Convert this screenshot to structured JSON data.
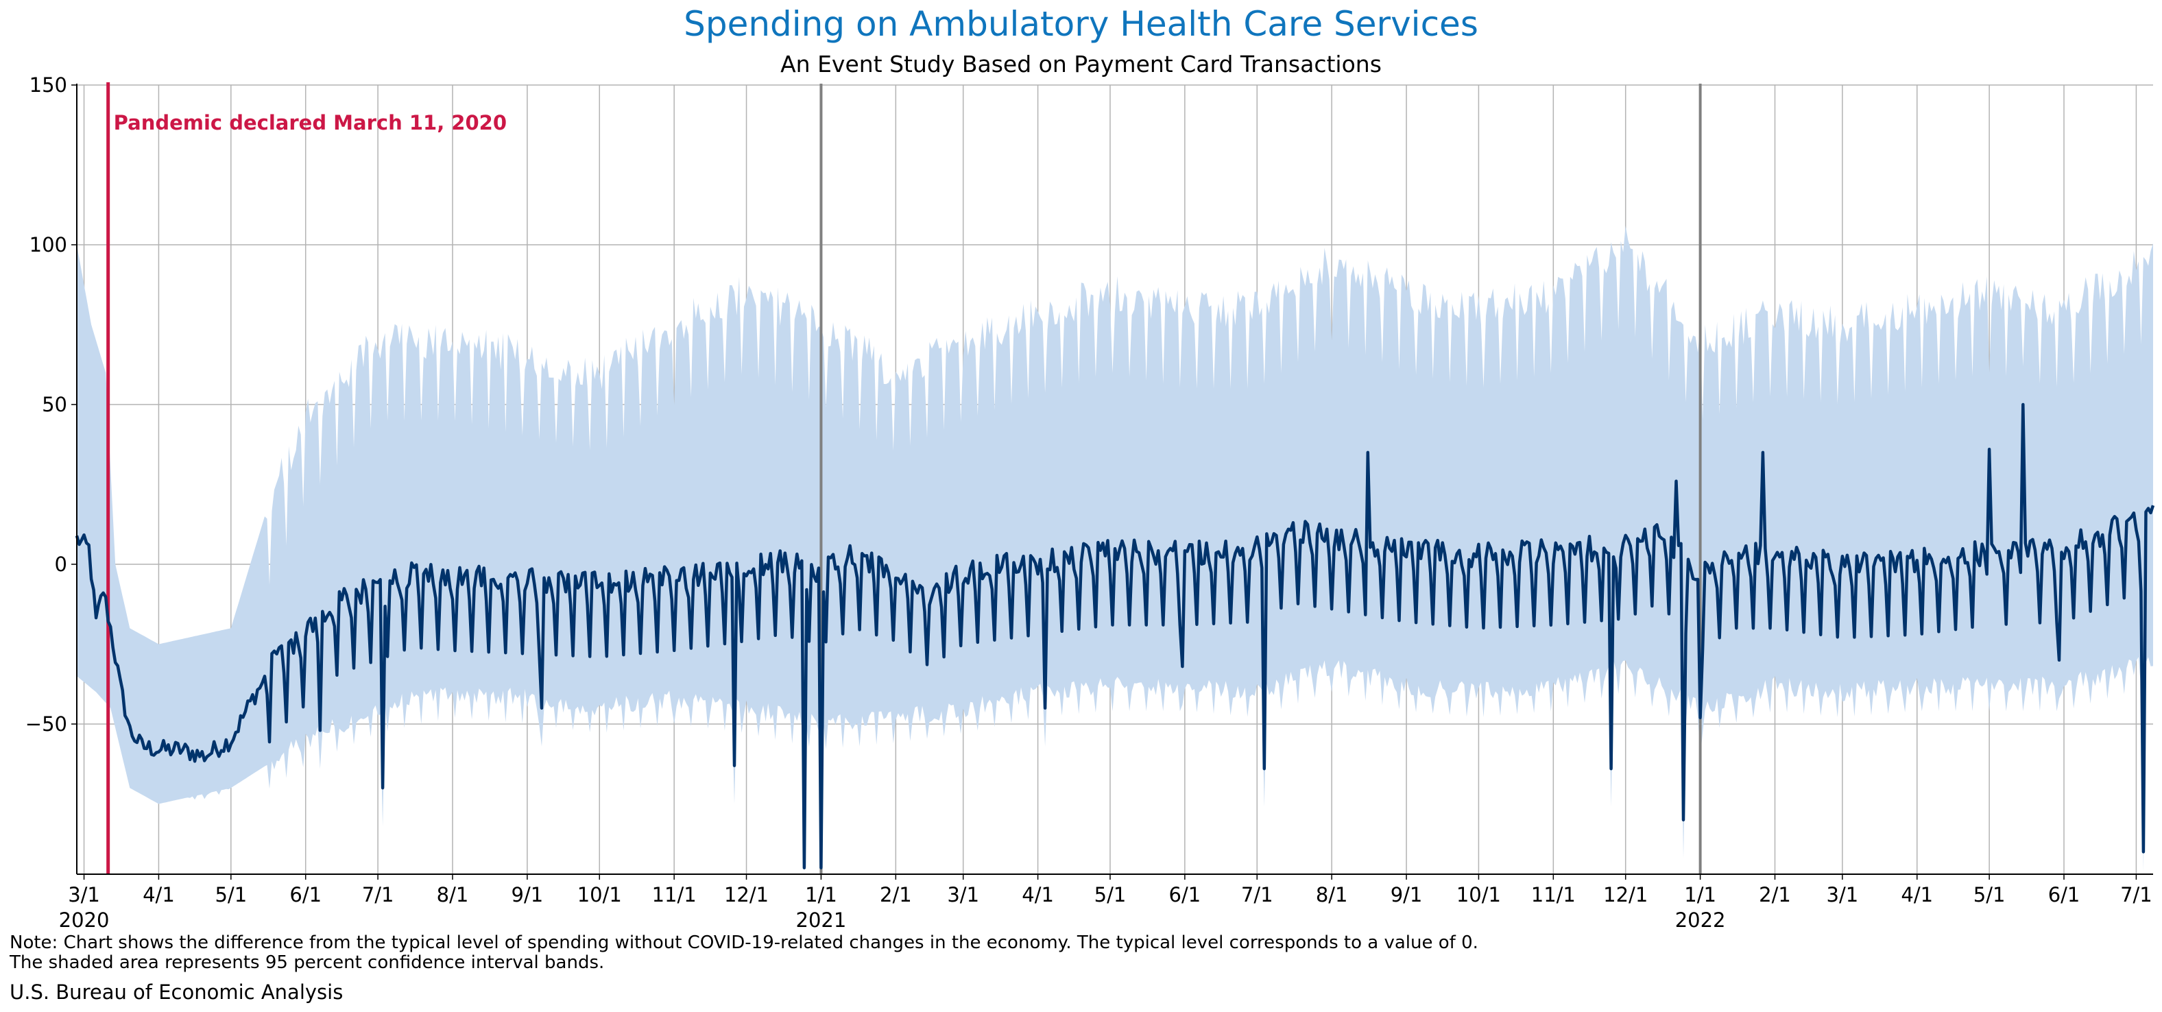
{
  "chart_data": {
    "type": "area",
    "title": "Spending on Ambulatory Health Care Services",
    "subtitle": "An Event Study Based on Payment Card Transactions",
    "xlabel": "",
    "ylabel": "",
    "x_range": [
      "2020-02-27",
      "2022-07-08"
    ],
    "ylim": [
      -97,
      150
    ],
    "yticks": [
      -50,
      0,
      50,
      100,
      150
    ],
    "grid": true,
    "x_ticks": [
      {
        "date": "2020-03-01",
        "label": "3/1",
        "year": "2020"
      },
      {
        "date": "2020-04-01",
        "label": "4/1"
      },
      {
        "date": "2020-05-01",
        "label": "5/1"
      },
      {
        "date": "2020-06-01",
        "label": "6/1"
      },
      {
        "date": "2020-07-01",
        "label": "7/1"
      },
      {
        "date": "2020-08-01",
        "label": "8/1"
      },
      {
        "date": "2020-09-01",
        "label": "9/1"
      },
      {
        "date": "2020-10-01",
        "label": "10/1"
      },
      {
        "date": "2020-11-01",
        "label": "11/1"
      },
      {
        "date": "2020-12-01",
        "label": "12/1"
      },
      {
        "date": "2021-01-01",
        "label": "1/1",
        "year": "2021"
      },
      {
        "date": "2021-02-01",
        "label": "2/1"
      },
      {
        "date": "2021-03-01",
        "label": "3/1"
      },
      {
        "date": "2021-04-01",
        "label": "4/1"
      },
      {
        "date": "2021-05-01",
        "label": "5/1"
      },
      {
        "date": "2021-06-01",
        "label": "6/1"
      },
      {
        "date": "2021-07-01",
        "label": "7/1"
      },
      {
        "date": "2021-08-01",
        "label": "8/1"
      },
      {
        "date": "2021-09-01",
        "label": "9/1"
      },
      {
        "date": "2021-10-01",
        "label": "10/1"
      },
      {
        "date": "2021-11-01",
        "label": "11/1"
      },
      {
        "date": "2021-12-01",
        "label": "12/1"
      },
      {
        "date": "2022-01-01",
        "label": "1/1",
        "year": "2022"
      },
      {
        "date": "2022-02-01",
        "label": "2/1"
      },
      {
        "date": "2022-03-01",
        "label": "3/1"
      },
      {
        "date": "2022-04-01",
        "label": "4/1"
      },
      {
        "date": "2022-05-01",
        "label": "5/1"
      },
      {
        "date": "2022-06-01",
        "label": "6/1"
      },
      {
        "date": "2022-07-01",
        "label": "7/1"
      }
    ],
    "year_lines": [
      "2021-01-01",
      "2022-01-01"
    ],
    "event": {
      "date": "2020-03-11",
      "label": "Pandemic declared March 11, 2020"
    },
    "colors": {
      "line": "#00336b",
      "band": "#c5d9ef",
      "event": "#cc1746",
      "title": "#0f75bd",
      "grid": "#b3b3b3",
      "year_line": "#808080"
    },
    "series": [
      {
        "role": "estimate",
        "points": [
          [
            "2020-02-27",
            8
          ],
          [
            "2020-03-03",
            5
          ],
          [
            "2020-03-06",
            -18
          ],
          [
            "2020-03-09",
            -8
          ],
          [
            "2020-03-12",
            -20
          ],
          [
            "2020-03-16",
            -38
          ],
          [
            "2020-03-20",
            -52
          ],
          [
            "2020-03-25",
            -57
          ],
          [
            "2020-04-01",
            -58
          ],
          [
            "2020-04-10",
            -58
          ],
          [
            "2020-04-20",
            -60
          ],
          [
            "2020-05-01",
            -55
          ],
          [
            "2020-05-10",
            -42
          ],
          [
            "2020-05-20",
            -30
          ],
          [
            "2020-06-01",
            -22
          ],
          [
            "2020-06-15",
            -12
          ],
          [
            "2020-07-01",
            -8
          ],
          [
            "2020-07-15",
            -4
          ],
          [
            "2020-08-01",
            -5
          ],
          [
            "2020-09-01",
            -6
          ],
          [
            "2020-10-01",
            -7
          ],
          [
            "2020-11-01",
            -5
          ],
          [
            "2020-12-01",
            -2
          ],
          [
            "2020-12-15",
            0
          ],
          [
            "2021-01-01",
            -3
          ],
          [
            "2021-01-15",
            2
          ],
          [
            "2021-02-01",
            -2
          ],
          [
            "2021-02-15",
            -10
          ],
          [
            "2021-03-01",
            -3
          ],
          [
            "2021-04-01",
            0
          ],
          [
            "2021-05-01",
            3
          ],
          [
            "2021-06-01",
            3
          ],
          [
            "2021-07-01",
            4
          ],
          [
            "2021-07-15",
            10
          ],
          [
            "2021-08-01",
            8
          ],
          [
            "2021-09-01",
            4
          ],
          [
            "2021-10-01",
            2
          ],
          [
            "2021-11-01",
            3
          ],
          [
            "2021-12-01",
            5
          ],
          [
            "2021-12-15",
            10
          ],
          [
            "2022-01-01",
            -5
          ],
          [
            "2022-01-15",
            2
          ],
          [
            "2022-02-01",
            2
          ],
          [
            "2022-03-01",
            -1
          ],
          [
            "2022-04-01",
            0
          ],
          [
            "2022-05-01",
            3
          ],
          [
            "2022-06-01",
            4
          ],
          [
            "2022-07-08",
            15
          ]
        ],
        "dips": [
          [
            "2020-06-07",
            -52
          ],
          [
            "2020-07-03",
            -70
          ],
          [
            "2020-09-07",
            -45
          ],
          [
            "2020-11-26",
            -63
          ],
          [
            "2020-12-25",
            -95
          ],
          [
            "2021-01-01",
            -95
          ],
          [
            "2021-04-04",
            -45
          ],
          [
            "2021-05-31",
            -32
          ],
          [
            "2021-07-04",
            -64
          ],
          [
            "2021-11-25",
            -64
          ],
          [
            "2021-12-25",
            -80
          ],
          [
            "2022-01-01",
            -48
          ],
          [
            "2022-05-30",
            -30
          ],
          [
            "2022-07-04",
            -90
          ]
        ],
        "spikes": [
          [
            "2021-08-16",
            35
          ],
          [
            "2021-12-22",
            26
          ],
          [
            "2022-01-27",
            35
          ],
          [
            "2022-05-01",
            36
          ],
          [
            "2022-05-15",
            50
          ]
        ]
      },
      {
        "role": "ci-upper",
        "points": [
          [
            "2020-02-27",
            100
          ],
          [
            "2020-03-04",
            75
          ],
          [
            "2020-03-10",
            60
          ],
          [
            "2020-03-14",
            0
          ],
          [
            "2020-03-20",
            -20
          ],
          [
            "2020-04-01",
            -25
          ],
          [
            "2020-05-01",
            -20
          ],
          [
            "2020-05-15",
            15
          ],
          [
            "2020-06-01",
            45
          ],
          [
            "2020-07-01",
            70
          ],
          [
            "2020-08-01",
            70
          ],
          [
            "2020-09-01",
            65
          ],
          [
            "2020-10-01",
            60
          ],
          [
            "2020-11-01",
            75
          ],
          [
            "2020-12-01",
            85
          ],
          [
            "2021-01-01",
            75
          ],
          [
            "2021-02-01",
            60
          ],
          [
            "2021-03-01",
            70
          ],
          [
            "2021-04-01",
            78
          ],
          [
            "2021-05-01",
            85
          ],
          [
            "2021-06-01",
            80
          ],
          [
            "2021-07-01",
            80
          ],
          [
            "2021-08-01",
            95
          ],
          [
            "2021-09-01",
            85
          ],
          [
            "2021-10-01",
            80
          ],
          [
            "2021-11-01",
            85
          ],
          [
            "2021-12-01",
            100
          ],
          [
            "2022-01-01",
            70
          ],
          [
            "2022-02-01",
            78
          ],
          [
            "2022-03-01",
            75
          ],
          [
            "2022-04-01",
            80
          ],
          [
            "2022-05-01",
            85
          ],
          [
            "2022-06-01",
            80
          ],
          [
            "2022-07-08",
            96
          ]
        ]
      },
      {
        "role": "ci-lower",
        "points": [
          [
            "2020-02-27",
            -35
          ],
          [
            "2020-03-06",
            -40
          ],
          [
            "2020-03-12",
            -45
          ],
          [
            "2020-03-20",
            -70
          ],
          [
            "2020-04-01",
            -75
          ],
          [
            "2020-05-01",
            -70
          ],
          [
            "2020-06-01",
            -55
          ],
          [
            "2020-07-01",
            -45
          ],
          [
            "2020-08-01",
            -40
          ],
          [
            "2020-09-01",
            -42
          ],
          [
            "2020-10-01",
            -45
          ],
          [
            "2020-11-01",
            -42
          ],
          [
            "2020-12-01",
            -45
          ],
          [
            "2021-01-01",
            -50
          ],
          [
            "2021-02-01",
            -48
          ],
          [
            "2021-03-01",
            -45
          ],
          [
            "2021-04-01",
            -40
          ],
          [
            "2021-05-01",
            -38
          ],
          [
            "2021-06-01",
            -38
          ],
          [
            "2021-07-01",
            -40
          ],
          [
            "2021-08-01",
            -32
          ],
          [
            "2021-09-01",
            -38
          ],
          [
            "2021-10-01",
            -40
          ],
          [
            "2021-11-01",
            -38
          ],
          [
            "2021-12-01",
            -32
          ],
          [
            "2022-01-01",
            -45
          ],
          [
            "2022-02-01",
            -38
          ],
          [
            "2022-03-01",
            -40
          ],
          [
            "2022-04-01",
            -38
          ],
          [
            "2022-05-01",
            -38
          ],
          [
            "2022-06-01",
            -38
          ],
          [
            "2022-07-08",
            -30
          ]
        ]
      }
    ]
  },
  "note_line1": "Note: Chart shows the difference from the typical level of spending without COVID-19-related changes in the economy. The typical level corresponds to a value of 0.",
  "note_line2": "The shaded area represents 95 percent confidence interval bands.",
  "source": "U.S. Bureau of Economic Analysis"
}
